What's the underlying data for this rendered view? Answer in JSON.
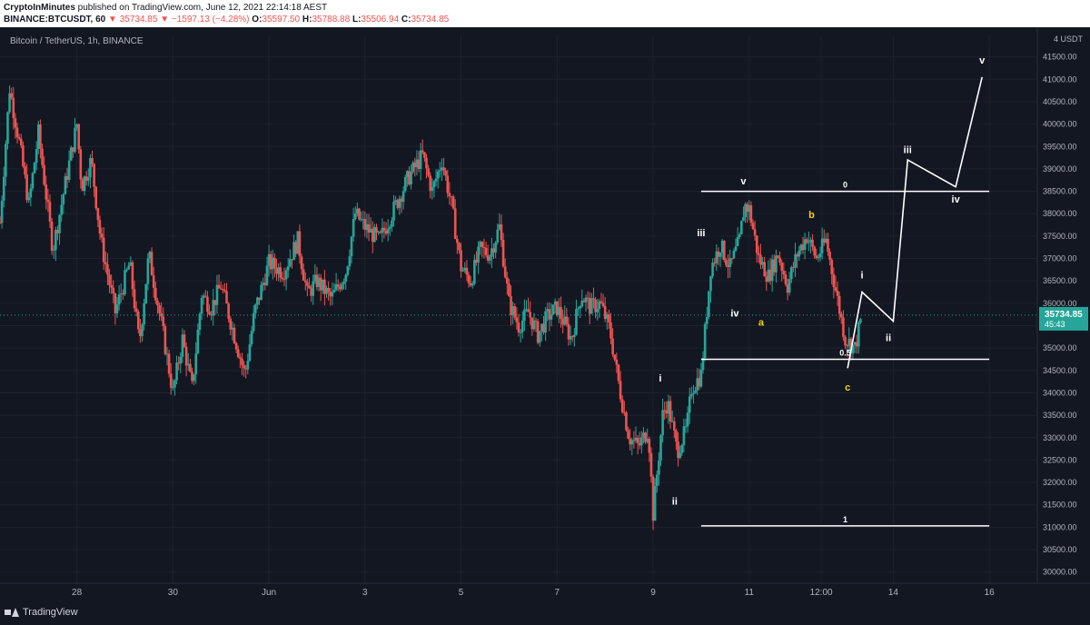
{
  "header": {
    "author": "CryptoInMinutes",
    "published": "published on TradingView.com, June 12, 2021 22:14:18 AEST",
    "symbol": "BINANCE:BTCUSDT, 60",
    "last": "35734.85",
    "change": "−1597.13 (−4.28%)",
    "o_label": "O:",
    "o": "35597.50",
    "h_label": "H:",
    "h": "35788.88",
    "l_label": "L:",
    "l": "35506.94",
    "c_label": "C:",
    "c": "35734.85"
  },
  "symbol_title": "Bitcoin / TetherUS, 1h, BINANCE",
  "currency_label": "4 USDT",
  "footer": {
    "brand": "TradingView"
  },
  "colors": {
    "bg": "#131722",
    "up": "#26a69a",
    "down": "#ef5350",
    "wave": "#ffffff",
    "wave_alt": "#f5d100",
    "grid": "#1e222d"
  },
  "chart_data": {
    "type": "candlestick",
    "title": "Bitcoin / TetherUS, 1h, BINANCE",
    "ylim": [
      29750,
      42000
    ],
    "y_ticks": [
      30000,
      30500,
      31000,
      31500,
      32000,
      32500,
      33000,
      33500,
      34000,
      34500,
      35000,
      35500,
      36000,
      36500,
      37000,
      37500,
      38000,
      38500,
      39000,
      39500,
      40000,
      40500,
      41000,
      41500
    ],
    "x_ticks": [
      {
        "label": "28",
        "x": 1.0
      },
      {
        "label": "30",
        "x": 3.0
      },
      {
        "label": "Jun",
        "x": 5.0
      },
      {
        "label": "3",
        "x": 7.0
      },
      {
        "label": "5",
        "x": 9.0
      },
      {
        "label": "7",
        "x": 11.0
      },
      {
        "label": "9",
        "x": 13.0
      },
      {
        "label": "11",
        "x": 15.0
      },
      {
        "label": "12:00",
        "x": 16.5
      },
      {
        "label": "14",
        "x": 18.0
      },
      {
        "label": "16",
        "x": 20.0
      }
    ],
    "xlim": [
      -0.6,
      21.0
    ],
    "last_price": {
      "value": 35734.85,
      "label": "35734.85",
      "countdown": "45:43"
    },
    "price_path": [
      [
        -0.6,
        37800
      ],
      [
        -0.4,
        40800
      ],
      [
        -0.2,
        39600
      ],
      [
        0.0,
        38200
      ],
      [
        0.2,
        39800
      ],
      [
        0.5,
        37200
      ],
      [
        0.8,
        38900
      ],
      [
        1.0,
        40000
      ],
      [
        1.1,
        38600
      ],
      [
        1.3,
        39200
      ],
      [
        1.5,
        37400
      ],
      [
        1.8,
        35800
      ],
      [
        2.1,
        36900
      ],
      [
        2.3,
        35100
      ],
      [
        2.5,
        37100
      ],
      [
        2.8,
        35300
      ],
      [
        3.0,
        34000
      ],
      [
        3.2,
        35200
      ],
      [
        3.4,
        34100
      ],
      [
        3.6,
        36200
      ],
      [
        3.8,
        35900
      ],
      [
        4.0,
        36400
      ],
      [
        4.3,
        35200
      ],
      [
        4.5,
        34400
      ],
      [
        4.7,
        35800
      ],
      [
        5.0,
        36900
      ],
      [
        5.3,
        36700
      ],
      [
        5.6,
        37400
      ],
      [
        5.8,
        36200
      ],
      [
        6.0,
        36500
      ],
      [
        6.3,
        36100
      ],
      [
        6.6,
        36700
      ],
      [
        6.8,
        38000
      ],
      [
        7.0,
        37700
      ],
      [
        7.3,
        37400
      ],
      [
        7.6,
        38100
      ],
      [
        7.9,
        38800
      ],
      [
        8.2,
        39300
      ],
      [
        8.4,
        38500
      ],
      [
        8.6,
        39200
      ],
      [
        8.8,
        38200
      ],
      [
        9.0,
        36800
      ],
      [
        9.2,
        36500
      ],
      [
        9.4,
        37200
      ],
      [
        9.6,
        37100
      ],
      [
        9.8,
        37700
      ],
      [
        10.0,
        36000
      ],
      [
        10.2,
        35500
      ],
      [
        10.4,
        35800
      ],
      [
        10.6,
        35300
      ],
      [
        10.8,
        35700
      ],
      [
        11.0,
        35900
      ],
      [
        11.3,
        35200
      ],
      [
        11.5,
        36200
      ],
      [
        11.7,
        35900
      ],
      [
        11.9,
        36000
      ],
      [
        12.1,
        35400
      ],
      [
        12.3,
        34100
      ],
      [
        12.5,
        33000
      ],
      [
        12.7,
        32800
      ],
      [
        12.9,
        33200
      ],
      [
        13.0,
        31300
      ],
      [
        13.2,
        33500
      ],
      [
        13.3,
        33800
      ],
      [
        13.5,
        32700
      ],
      [
        13.7,
        33200
      ],
      [
        13.8,
        34100
      ],
      [
        14.0,
        34400
      ],
      [
        14.2,
        36800
      ],
      [
        14.4,
        37300
      ],
      [
        14.6,
        36800
      ],
      [
        14.8,
        37400
      ],
      [
        14.9,
        38200
      ],
      [
        15.0,
        38100
      ],
      [
        15.2,
        37000
      ],
      [
        15.4,
        36600
      ],
      [
        15.6,
        37100
      ],
      [
        15.8,
        36400
      ],
      [
        16.0,
        37100
      ],
      [
        16.2,
        37500
      ],
      [
        16.4,
        37000
      ],
      [
        16.6,
        37400
      ],
      [
        16.8,
        36300
      ],
      [
        17.0,
        35200
      ],
      [
        17.2,
        35000
      ],
      [
        17.35,
        35734.85
      ]
    ],
    "horizontal_levels": [
      {
        "label": "0",
        "value": 38500,
        "x1": 14.0,
        "x2": 20.0
      },
      {
        "label": "0.5",
        "value": 34750,
        "x1": 14.0,
        "x2": 20.0
      },
      {
        "label": "1",
        "value": 31030,
        "x1": 14.0,
        "x2": 20.0
      }
    ],
    "projection_path": [
      [
        17.05,
        34550
      ],
      [
        17.35,
        36250
      ],
      [
        18.0,
        35600
      ],
      [
        18.3,
        39200
      ],
      [
        19.3,
        38600
      ],
      [
        19.85,
        41050
      ]
    ],
    "wave_labels": [
      {
        "text": "i",
        "x": 13.15,
        "y": 34250,
        "color": "white"
      },
      {
        "text": "ii",
        "x": 13.45,
        "y": 31500,
        "color": "white"
      },
      {
        "text": "iii",
        "x": 14.0,
        "y": 37500,
        "color": "white"
      },
      {
        "text": "iv",
        "x": 14.7,
        "y": 35700,
        "color": "white"
      },
      {
        "text": "v",
        "x": 14.88,
        "y": 38650,
        "color": "white"
      },
      {
        "text": "a",
        "x": 15.25,
        "y": 35500,
        "color": "yellow"
      },
      {
        "text": "b",
        "x": 16.3,
        "y": 37900,
        "color": "yellow"
      },
      {
        "text": "c",
        "x": 17.05,
        "y": 34050,
        "color": "yellow"
      },
      {
        "text": "i",
        "x": 17.35,
        "y": 36550,
        "color": "white"
      },
      {
        "text": "ii",
        "x": 17.9,
        "y": 35150,
        "color": "white"
      },
      {
        "text": "iii",
        "x": 18.3,
        "y": 39350,
        "color": "white"
      },
      {
        "text": "iv",
        "x": 19.3,
        "y": 38250,
        "color": "white"
      },
      {
        "text": "v",
        "x": 19.85,
        "y": 41350,
        "color": "white"
      }
    ]
  }
}
